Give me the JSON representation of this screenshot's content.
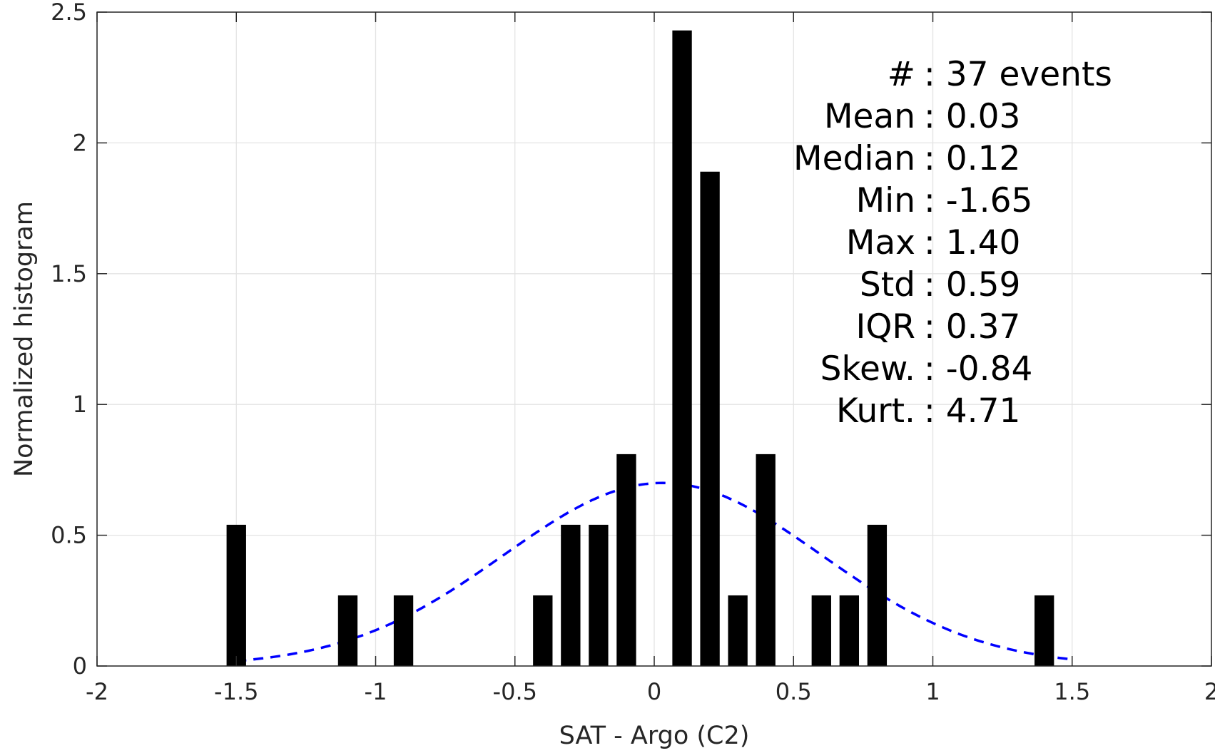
{
  "chart_data": {
    "type": "bar",
    "xlabel": "SAT - Argo (C2)",
    "ylabel": "Normalized histogram",
    "xlim": [
      -2,
      2
    ],
    "ylim": [
      0,
      2.5
    ],
    "grid": true,
    "x_ticks": [
      -2,
      -1.5,
      -1,
      -0.5,
      0,
      0.5,
      1,
      1.5,
      2
    ],
    "x_tick_labels": [
      "-2",
      "-1.5",
      "-1",
      "-0.5",
      "0",
      "0.5",
      "1",
      "1.5",
      "2"
    ],
    "y_ticks": [
      0,
      0.5,
      1,
      1.5,
      2,
      2.5
    ],
    "y_tick_labels": [
      "0",
      "0.5",
      "1",
      "1.5",
      "2",
      "2.5"
    ],
    "bar_width": 0.07,
    "bars": [
      {
        "x": -1.5,
        "y": 0.54
      },
      {
        "x": -1.1,
        "y": 0.27
      },
      {
        "x": -0.9,
        "y": 0.27
      },
      {
        "x": -0.4,
        "y": 0.27
      },
      {
        "x": -0.3,
        "y": 0.54
      },
      {
        "x": -0.2,
        "y": 0.54
      },
      {
        "x": -0.1,
        "y": 0.81
      },
      {
        "x": 0.1,
        "y": 2.43
      },
      {
        "x": 0.2,
        "y": 1.89
      },
      {
        "x": 0.3,
        "y": 0.27
      },
      {
        "x": 0.4,
        "y": 0.81
      },
      {
        "x": 0.6,
        "y": 0.27
      },
      {
        "x": 0.7,
        "y": 0.27
      },
      {
        "x": 0.8,
        "y": 0.54
      },
      {
        "x": 1.4,
        "y": 0.27
      }
    ],
    "fit_curve": {
      "style": "dashed",
      "color": "#0000ff",
      "mean": 0.03,
      "std": 0.57,
      "x_range": [
        -1.5,
        1.5
      ]
    },
    "bar_color": "#000000",
    "stats": [
      {
        "key": "#",
        "sep": " : ",
        "value": "37 events"
      },
      {
        "key": "Mean",
        "sep": " : ",
        "value": "0.03"
      },
      {
        "key": "Median",
        "sep": " : ",
        "value": "0.12"
      },
      {
        "key": "Min",
        "sep": " : ",
        "value": "-1.65"
      },
      {
        "key": "Max",
        "sep": " : ",
        "value": "1.40"
      },
      {
        "key": "Std",
        "sep": " : ",
        "value": "0.59"
      },
      {
        "key": "IQR",
        "sep": " : ",
        "value": "0.37"
      },
      {
        "key": "Skew.",
        "sep": " : ",
        "value": "-0.84"
      },
      {
        "key": "Kurt.",
        "sep": " : ",
        "value": "4.71"
      }
    ]
  }
}
